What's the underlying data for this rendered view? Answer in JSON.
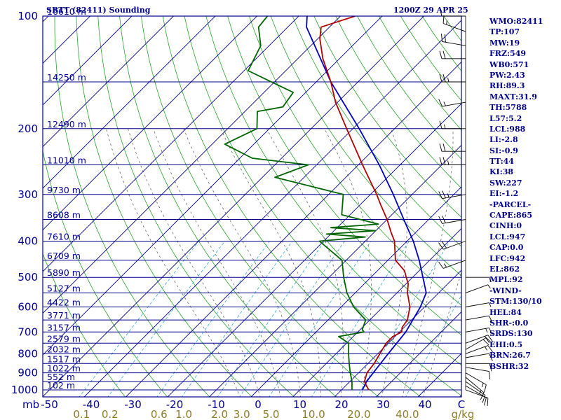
{
  "header": {
    "title": "SBTT (82411) Sounding",
    "datetime": "1200Z 29 APR 25"
  },
  "side_panel": [
    "WMO:82411",
    "TP:107",
    "MW:19",
    "FRZ:549",
    "WB0:571",
    "PW:2.43",
    "RH:89.3",
    "MAXT:31.9",
    "TH:5788",
    "L57:5.2",
    "LCL:988",
    "LI:-2.8",
    "SI:-0.9",
    "TT:44",
    "KI:38",
    "SW:227",
    "EI:-1.2",
    "-PARCEL-",
    "CAPE:865",
    "CINH:0",
    "LCL:947",
    "CAP:0.0",
    "LFC:942",
    "EL:862",
    "MPL:92",
    "-WIND-",
    "STM:130/10",
    "HEL:84",
    "SHR-:0.0",
    "SRDS:130",
    "EHI:0.5",
    "BRN:26.7",
    "BSHR:32"
  ],
  "colors": {
    "frame": "#00008b",
    "isobar": "#00008b",
    "isotherm": "#00008b",
    "dry_adiabat": "#2ca02c",
    "moist_adiabat": "#666666",
    "mixing_ratio": "#35a8d8",
    "temperature": "#b00000",
    "dewpoint": "#006400",
    "parcel": "#0000c0",
    "label": "#00008b",
    "mixing_label": "#8b7d2a"
  },
  "chart_data": {
    "type": "skew-t log-p sounding",
    "ylabel": "mb",
    "xlabel": "C",
    "pressure_levels": [
      100,
      200,
      300,
      400,
      500,
      600,
      700,
      800,
      900,
      1000
    ],
    "heights": [
      {
        "p": 100,
        "label": "16610 m"
      },
      {
        "p": 150,
        "label": "14250 m"
      },
      {
        "p": 200,
        "label": "12490 m"
      },
      {
        "p": 250,
        "label": "11010 m"
      },
      {
        "p": 300,
        "label": "9730 m"
      },
      {
        "p": 350,
        "label": "8608 m"
      },
      {
        "p": 400,
        "label": "7610 m"
      },
      {
        "p": 450,
        "label": "6709 m"
      },
      {
        "p": 500,
        "label": "5890 m"
      },
      {
        "p": 550,
        "label": "5127 m"
      },
      {
        "p": 600,
        "label": "4422 m"
      },
      {
        "p": 650,
        "label": "3771 m"
      },
      {
        "p": 700,
        "label": "3157 m"
      },
      {
        "p": 750,
        "label": "2579 m"
      },
      {
        "p": 800,
        "label": "2032 m"
      },
      {
        "p": 850,
        "label": "1517 m"
      },
      {
        "p": 900,
        "label": "1022 m"
      },
      {
        "p": 950,
        "label": "552 m"
      },
      {
        "p": 1000,
        "label": "102 m"
      }
    ],
    "temp_ticks": [
      -50,
      -40,
      -30,
      -20,
      -10,
      0,
      10,
      20,
      30,
      40
    ],
    "xlim": [
      -50,
      50
    ],
    "ylim": [
      1050,
      100
    ],
    "mixing_ratio_labels": [
      "0.1",
      "0.2",
      "0.6",
      "1.0",
      "2.0",
      "3.0",
      "5.0",
      "10.0",
      "20.0",
      "40.0"
    ],
    "mixing_ratio_unit": "g/kg",
    "mixing_ratio_values": [
      0.1,
      0.2,
      0.6,
      1.0,
      2.0,
      3.0,
      5.0,
      10.0,
      20.0,
      40.0
    ],
    "dry_adiabats_theta_k": [
      240,
      250,
      260,
      270,
      280,
      290,
      300,
      310,
      320,
      330,
      340,
      350,
      360,
      370,
      380,
      390,
      400,
      410,
      420,
      430,
      440,
      450,
      460,
      470,
      480,
      490,
      500,
      510,
      520,
      540,
      560,
      580,
      600
    ],
    "moist_adiabats_start_c_at_1000": [
      -5,
      0,
      5,
      10,
      15,
      20,
      25,
      30,
      35,
      40
    ],
    "series": [
      {
        "name": "temperature",
        "points": [
          {
            "p": 1000,
            "t": 26.5
          },
          {
            "p": 950,
            "t": 23.5
          },
          {
            "p": 900,
            "t": 22.0
          },
          {
            "p": 850,
            "t": 21.5
          },
          {
            "p": 800,
            "t": 20.5
          },
          {
            "p": 750,
            "t": 19.5
          },
          {
            "p": 720,
            "t": 19.5
          },
          {
            "p": 700,
            "t": 20.5
          },
          {
            "p": 680,
            "t": 19.5
          },
          {
            "p": 650,
            "t": 19.0
          },
          {
            "p": 600,
            "t": 16.5
          },
          {
            "p": 550,
            "t": 12.5
          },
          {
            "p": 520,
            "t": 10.5
          },
          {
            "p": 500,
            "t": 8.5
          },
          {
            "p": 480,
            "t": 6.5
          },
          {
            "p": 450,
            "t": 1.8
          },
          {
            "p": 400,
            "t": -3.0
          },
          {
            "p": 380,
            "t": -5.8
          },
          {
            "p": 350,
            "t": -10.0
          },
          {
            "p": 320,
            "t": -15.0
          },
          {
            "p": 300,
            "t": -18.5
          },
          {
            "p": 250,
            "t": -29.0
          },
          {
            "p": 200,
            "t": -41.5
          },
          {
            "p": 170,
            "t": -50.5
          },
          {
            "p": 150,
            "t": -56.5
          },
          {
            "p": 130,
            "t": -64.0
          },
          {
            "p": 115,
            "t": -69.5
          },
          {
            "p": 107,
            "t": -72.0
          },
          {
            "p": 100,
            "t": -66.5
          }
        ]
      },
      {
        "name": "dewpoint",
        "points": [
          {
            "p": 1000,
            "t": 22.5
          },
          {
            "p": 950,
            "t": 20.5
          },
          {
            "p": 900,
            "t": 18.0
          },
          {
            "p": 850,
            "t": 15.5
          },
          {
            "p": 800,
            "t": 13.0
          },
          {
            "p": 750,
            "t": 10.5
          },
          {
            "p": 720,
            "t": 6.5
          },
          {
            "p": 700,
            "t": 11.5
          },
          {
            "p": 690,
            "t": 10.5
          },
          {
            "p": 650,
            "t": 9.0
          },
          {
            "p": 600,
            "t": 3.0
          },
          {
            "p": 550,
            "t": -2.0
          },
          {
            "p": 500,
            "t": -6.5
          },
          {
            "p": 450,
            "t": -11.0
          },
          {
            "p": 400,
            "t": -21.0
          },
          {
            "p": 390,
            "t": -11.0
          },
          {
            "p": 383,
            "t": -21.0
          },
          {
            "p": 375,
            "t": -10.0
          },
          {
            "p": 368,
            "t": -21.5
          },
          {
            "p": 360,
            "t": -11.0
          },
          {
            "p": 340,
            "t": -22.0
          },
          {
            "p": 300,
            "t": -26.5
          },
          {
            "p": 270,
            "t": -47.0
          },
          {
            "p": 250,
            "t": -42.0
          },
          {
            "p": 240,
            "t": -57.0
          },
          {
            "p": 220,
            "t": -67.0
          },
          {
            "p": 200,
            "t": -63.0
          },
          {
            "p": 180,
            "t": -67.0
          },
          {
            "p": 175,
            "t": -62.0
          },
          {
            "p": 160,
            "t": -63.0
          },
          {
            "p": 140,
            "t": -79.0
          },
          {
            "p": 120,
            "t": -82.0
          },
          {
            "p": 107,
            "t": -87.0
          },
          {
            "p": 100,
            "t": -87.5
          }
        ]
      },
      {
        "name": "parcel",
        "points": [
          {
            "p": 1000,
            "t": 25.0
          },
          {
            "p": 950,
            "t": 24.0
          },
          {
            "p": 900,
            "t": 23.5
          },
          {
            "p": 800,
            "t": 22.5
          },
          {
            "p": 700,
            "t": 21.5
          },
          {
            "p": 600,
            "t": 19.0
          },
          {
            "p": 550,
            "t": 17.0
          },
          {
            "p": 500,
            "t": 12.5
          },
          {
            "p": 450,
            "t": 7.5
          },
          {
            "p": 400,
            "t": 1.5
          },
          {
            "p": 350,
            "t": -6.0
          },
          {
            "p": 300,
            "t": -14.5
          },
          {
            "p": 250,
            "t": -25.0
          },
          {
            "p": 200,
            "t": -38.5
          },
          {
            "p": 150,
            "t": -56.5
          },
          {
            "p": 107,
            "t": -75.5
          },
          {
            "p": 100,
            "t": -78.0
          }
        ]
      }
    ],
    "winds": [
      {
        "p": 1000,
        "dir": 110,
        "spd": 10
      },
      {
        "p": 975,
        "dir": 120,
        "spd": 12
      },
      {
        "p": 950,
        "dir": 125,
        "spd": 14
      },
      {
        "p": 925,
        "dir": 130,
        "spd": 15
      },
      {
        "p": 900,
        "dir": 120,
        "spd": 15
      },
      {
        "p": 870,
        "dir": 100,
        "spd": 12
      },
      {
        "p": 850,
        "dir": 90,
        "spd": 10
      },
      {
        "p": 820,
        "dir": 80,
        "spd": 12
      },
      {
        "p": 800,
        "dir": 70,
        "spd": 15
      },
      {
        "p": 780,
        "dir": 60,
        "spd": 20
      },
      {
        "p": 750,
        "dir": 70,
        "spd": 20
      },
      {
        "p": 700,
        "dir": 80,
        "spd": 15
      },
      {
        "p": 650,
        "dir": 80,
        "spd": 10
      },
      {
        "p": 600,
        "dir": 80,
        "spd": 5
      },
      {
        "p": 550,
        "dir": 70,
        "spd": 5
      },
      {
        "p": 500,
        "dir": 90,
        "spd": 5
      },
      {
        "p": 450,
        "dir": 250,
        "spd": 15
      },
      {
        "p": 400,
        "dir": 250,
        "spd": 20
      },
      {
        "p": 350,
        "dir": 260,
        "spd": 20
      },
      {
        "p": 300,
        "dir": 260,
        "spd": 25
      },
      {
        "p": 250,
        "dir": 270,
        "spd": 25
      },
      {
        "p": 230,
        "dir": 270,
        "spd": 20
      },
      {
        "p": 200,
        "dir": 270,
        "spd": 15
      },
      {
        "p": 170,
        "dir": 260,
        "spd": 15
      },
      {
        "p": 150,
        "dir": 270,
        "spd": 25
      },
      {
        "p": 130,
        "dir": 270,
        "spd": 20
      },
      {
        "p": 120,
        "dir": 280,
        "spd": 20
      },
      {
        "p": 110,
        "dir": 290,
        "spd": 15
      },
      {
        "p": 100,
        "dir": 270,
        "spd": 5
      }
    ]
  }
}
